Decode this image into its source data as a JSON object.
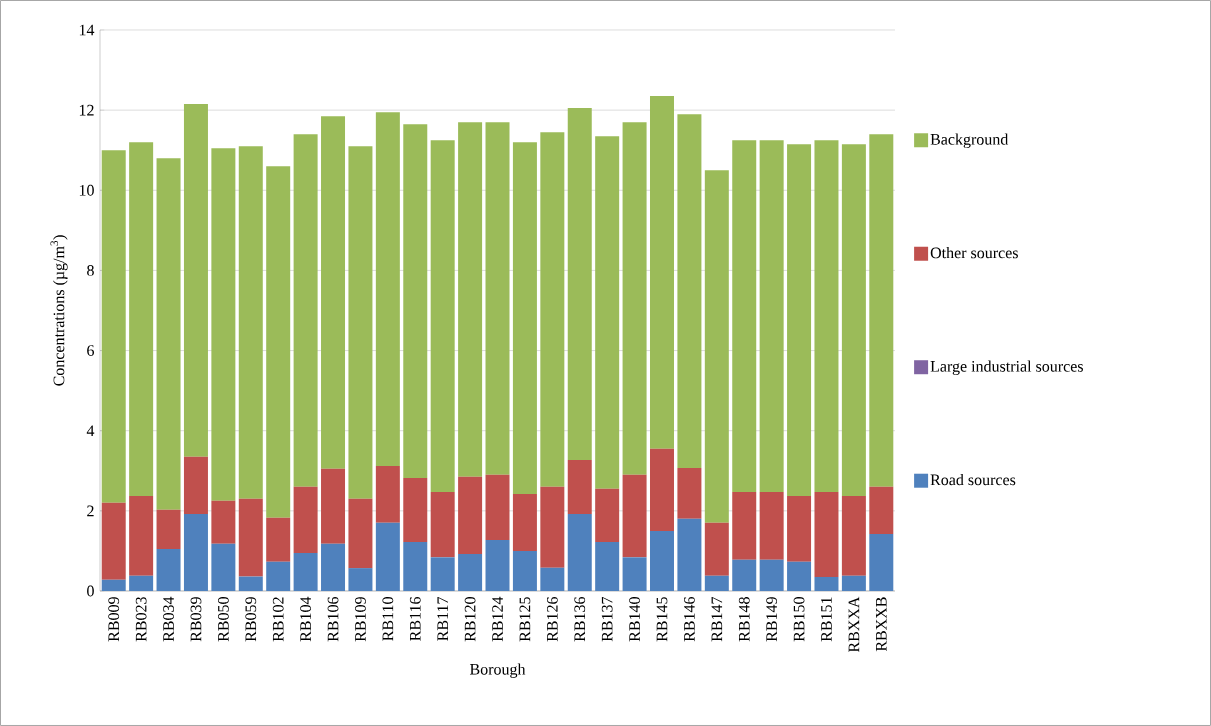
{
  "chart_data": {
    "type": "bar",
    "stacked": true,
    "xlabel": "Borough",
    "ylabel": "Concentrations (µg/m$^{3}$)",
    "categories": [
      "RB009",
      "RB023",
      "RB034",
      "RB039",
      "RB050",
      "RB059",
      "RB102",
      "RB104",
      "RB106",
      "RB109",
      "RB110",
      "RB116",
      "RB117",
      "RB120",
      "RB124",
      "RB125",
      "RB126",
      "RB136",
      "RB137",
      "RB140",
      "RB145",
      "RB146",
      "RB147",
      "RB148",
      "RB149",
      "RB150",
      "RB151",
      "RBXXA",
      "RBXXB"
    ],
    "series": [
      {
        "name": "Road sources",
        "color": "#4f81bd",
        "values": [
          0.28,
          0.38,
          1.05,
          1.92,
          1.18,
          0.36,
          0.73,
          0.95,
          1.18,
          0.57,
          1.7,
          1.22,
          0.84,
          0.92,
          1.27,
          1.0,
          0.58,
          1.92,
          1.22,
          0.84,
          1.5,
          1.8,
          0.38,
          0.78,
          0.78,
          0.73,
          0.35,
          0.38,
          1.42
        ]
      },
      {
        "name": "Large industrial sources",
        "color": "#8064a2",
        "values": [
          0,
          0,
          0,
          0,
          0,
          0,
          0,
          0,
          0,
          0,
          0,
          0,
          0,
          0,
          0,
          0,
          0,
          0,
          0,
          0,
          0,
          0,
          0,
          0,
          0,
          0,
          0,
          0,
          0
        ]
      },
      {
        "name": "Other sources",
        "color": "#c0504d",
        "values": [
          1.92,
          1.99,
          0.98,
          1.43,
          1.07,
          1.94,
          1.1,
          1.65,
          1.87,
          1.73,
          1.42,
          1.6,
          1.63,
          1.93,
          1.63,
          1.42,
          2.02,
          1.35,
          1.33,
          2.06,
          2.05,
          1.27,
          1.32,
          1.69,
          1.69,
          1.64,
          2.12,
          1.99,
          1.18
        ]
      },
      {
        "name": "Background",
        "color": "#9bbb59",
        "values": [
          8.8,
          8.83,
          8.77,
          8.8,
          8.8,
          8.8,
          8.77,
          8.8,
          8.8,
          8.8,
          8.83,
          8.83,
          8.78,
          8.85,
          8.8,
          8.78,
          8.85,
          8.78,
          8.8,
          8.8,
          8.8,
          8.83,
          8.8,
          8.78,
          8.78,
          8.78,
          8.78,
          8.78,
          8.8
        ]
      }
    ],
    "ylim": [
      0,
      14
    ],
    "yticks": [
      0,
      2,
      4,
      6,
      8,
      10,
      12,
      14
    ],
    "grid": "y",
    "legend": "right"
  }
}
